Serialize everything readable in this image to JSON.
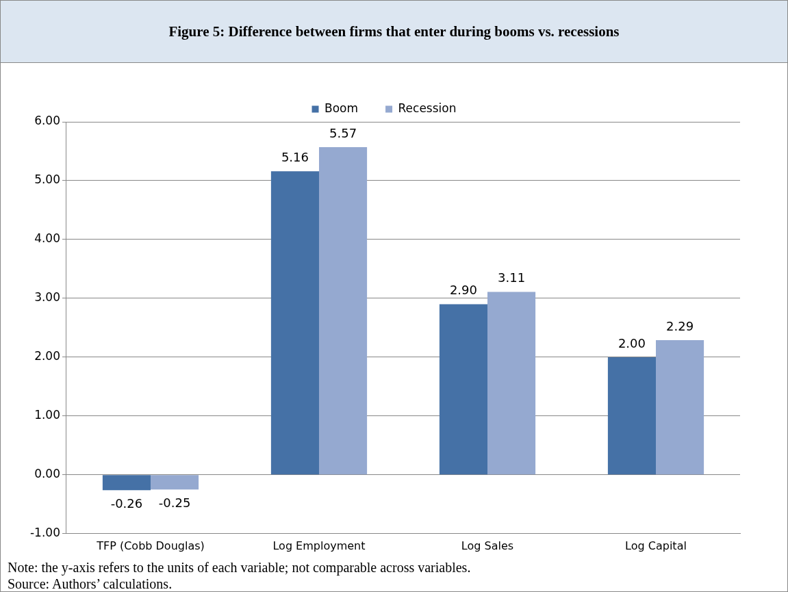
{
  "chart_data": {
    "type": "bar",
    "title": "Figure 5: Difference between firms that enter during booms vs. recessions",
    "categories": [
      "TFP (Cobb Douglas)",
      "Log Employment",
      "Log Sales",
      "Log Capital"
    ],
    "series": [
      {
        "name": "Boom",
        "color": "#4571a6",
        "values": [
          -0.26,
          5.16,
          2.9,
          2.0
        ],
        "value_labels": [
          "-0.26",
          "5.16",
          "2.90",
          "2.00"
        ]
      },
      {
        "name": "Recession",
        "color": "#95a9d0",
        "values": [
          -0.25,
          5.57,
          3.11,
          2.29
        ],
        "value_labels": [
          "-0.25",
          "5.57",
          "3.11",
          "2.29"
        ]
      }
    ],
    "ylim": [
      -1,
      6
    ],
    "yticks": [
      {
        "value": -1,
        "label": "-1.00"
      },
      {
        "value": 0,
        "label": "0.00"
      },
      {
        "value": 1,
        "label": "1.00"
      },
      {
        "value": 2,
        "label": "2.00"
      },
      {
        "value": 3,
        "label": "3.00"
      },
      {
        "value": 4,
        "label": "4.00"
      },
      {
        "value": 5,
        "label": "5.00"
      },
      {
        "value": 6,
        "label": "6.00"
      }
    ],
    "grid": "y",
    "legend": "top",
    "annotations": [
      "Note: the y-axis refers to the units of each variable; not comparable across variables.",
      "Source: Authors’ calculations."
    ]
  }
}
